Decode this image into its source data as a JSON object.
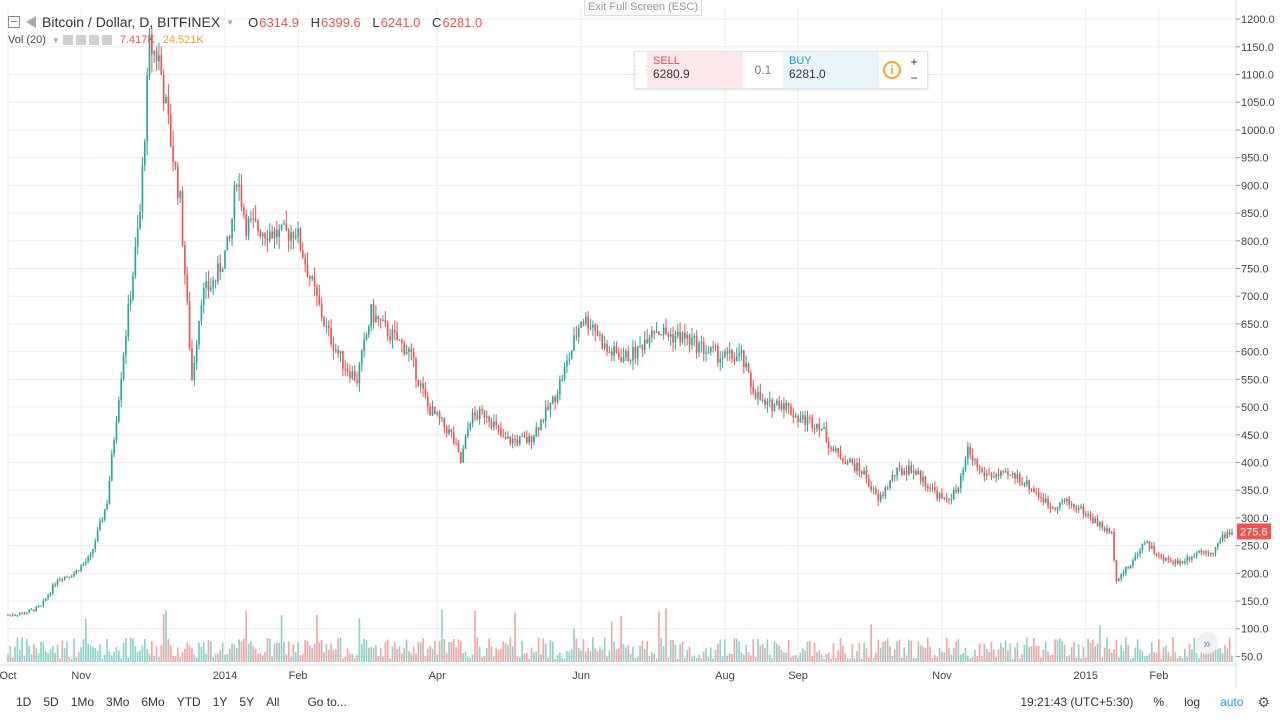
{
  "header": {
    "symbol": "Bitcoin / Dollar, D, BITFINEX",
    "open_label": "O",
    "open": "6314.9",
    "high_label": "H",
    "high": "6399.6",
    "low_label": "L",
    "low": "6241.0",
    "close_label": "C",
    "close": "6281.0"
  },
  "volume": {
    "label": "Vol (20)",
    "value": "7.417K",
    "ma": "24.521K"
  },
  "exit_fullscreen": "Exit Full Screen (ESC)",
  "trade": {
    "sell_label": "SELL",
    "sell_price": "6280.9",
    "qty": "0.1",
    "buy_label": "BUY",
    "buy_price": "6281.0",
    "plus": "+",
    "minus": "−"
  },
  "chart_data": {
    "type": "candlestick",
    "y_ticks": [
      "1200.0",
      "1150.0",
      "1100.0",
      "1050.0",
      "1000.0",
      "950.0",
      "900.0",
      "850.0",
      "800.0",
      "750.0",
      "700.0",
      "650.0",
      "600.0",
      "550.0",
      "500.0",
      "450.0",
      "400.0",
      "350.0",
      "300.0",
      "250.0",
      "200.0",
      "150.0",
      "100.0",
      "50.0"
    ],
    "ylim": [
      40,
      1220
    ],
    "x_ticks": [
      {
        "label": "Oct",
        "date": "2013-10-01"
      },
      {
        "label": "Nov",
        "date": "2013-11-01"
      },
      {
        "label": "2014",
        "date": "2014-01-01"
      },
      {
        "label": "Feb",
        "date": "2014-02-01"
      },
      {
        "label": "Apr",
        "date": "2014-04-01"
      },
      {
        "label": "Jun",
        "date": "2014-06-01"
      },
      {
        "label": "Aug",
        "date": "2014-08-01"
      },
      {
        "label": "Sep",
        "date": "2014-09-01"
      },
      {
        "label": "Nov",
        "date": "2014-11-01"
      },
      {
        "label": "2015",
        "date": "2015-01-01"
      },
      {
        "label": "Feb",
        "date": "2015-02-01"
      }
    ],
    "x_range": [
      "2013-10-01",
      "2015-03-04"
    ],
    "last_price": "275.6",
    "price_path": [
      [
        "2013-10-01",
        125
      ],
      [
        "2013-10-08",
        128
      ],
      [
        "2013-10-15",
        140
      ],
      [
        "2013-10-22",
        190
      ],
      [
        "2013-10-29",
        200
      ],
      [
        "2013-11-05",
        230
      ],
      [
        "2013-11-12",
        330
      ],
      [
        "2013-11-19",
        600
      ],
      [
        "2013-11-26",
        850
      ],
      [
        "2013-11-30",
        1150
      ],
      [
        "2013-12-04",
        1130
      ],
      [
        "2013-12-09",
        980
      ],
      [
        "2013-12-13",
        870
      ],
      [
        "2013-12-18",
        550
      ],
      [
        "2013-12-22",
        700
      ],
      [
        "2013-12-28",
        730
      ],
      [
        "2014-01-03",
        800
      ],
      [
        "2014-01-06",
        920
      ],
      [
        "2014-01-10",
        830
      ],
      [
        "2014-01-17",
        820
      ],
      [
        "2014-01-25",
        810
      ],
      [
        "2014-01-31",
        820
      ],
      [
        "2014-02-07",
        720
      ],
      [
        "2014-02-13",
        640
      ],
      [
        "2014-02-20",
        580
      ],
      [
        "2014-02-26",
        550
      ],
      [
        "2014-03-04",
        670
      ],
      [
        "2014-03-10",
        640
      ],
      [
        "2014-03-20",
        600
      ],
      [
        "2014-03-28",
        500
      ],
      [
        "2014-04-07",
        450
      ],
      [
        "2014-04-11",
        400
      ],
      [
        "2014-04-15",
        480
      ],
      [
        "2014-04-22",
        490
      ],
      [
        "2014-04-29",
        440
      ],
      [
        "2014-05-10",
        440
      ],
      [
        "2014-05-20",
        510
      ],
      [
        "2014-05-27",
        590
      ],
      [
        "2014-06-01",
        660
      ],
      [
        "2014-06-06",
        650
      ],
      [
        "2014-06-12",
        600
      ],
      [
        "2014-06-20",
        590
      ],
      [
        "2014-06-25",
        600
      ],
      [
        "2014-07-01",
        645
      ],
      [
        "2014-07-08",
        630
      ],
      [
        "2014-07-15",
        625
      ],
      [
        "2014-07-25",
        600
      ],
      [
        "2014-08-01",
        590
      ],
      [
        "2014-08-08",
        590
      ],
      [
        "2014-08-12",
        540
      ],
      [
        "2014-08-18",
        500
      ],
      [
        "2014-08-25",
        510
      ],
      [
        "2014-09-01",
        480
      ],
      [
        "2014-09-10",
        470
      ],
      [
        "2014-09-16",
        420
      ],
      [
        "2014-09-23",
        400
      ],
      [
        "2014-09-29",
        380
      ],
      [
        "2014-10-05",
        330
      ],
      [
        "2014-10-12",
        380
      ],
      [
        "2014-10-19",
        390
      ],
      [
        "2014-10-26",
        360
      ],
      [
        "2014-11-02",
        330
      ],
      [
        "2014-11-08",
        350
      ],
      [
        "2014-11-12",
        420
      ],
      [
        "2014-11-18",
        380
      ],
      [
        "2014-11-26",
        375
      ],
      [
        "2014-12-03",
        375
      ],
      [
        "2014-12-10",
        350
      ],
      [
        "2014-12-17",
        320
      ],
      [
        "2014-12-23",
        330
      ],
      [
        "2014-12-30",
        315
      ],
      [
        "2015-01-06",
        290
      ],
      [
        "2015-01-12",
        270
      ],
      [
        "2015-01-14",
        190
      ],
      [
        "2015-01-20",
        215
      ],
      [
        "2015-01-26",
        260
      ],
      [
        "2015-02-02",
        225
      ],
      [
        "2015-02-10",
        220
      ],
      [
        "2015-02-18",
        240
      ],
      [
        "2015-02-24",
        240
      ],
      [
        "2015-03-01",
        270
      ],
      [
        "2015-03-04",
        276
      ]
    ]
  },
  "bottom": {
    "timeframes": [
      "1D",
      "5D",
      "1Mo",
      "3Mo",
      "6Mo",
      "YTD",
      "1Y",
      "5Y",
      "All"
    ],
    "goto": "Go to...",
    "time": "19:21:43 (UTC+5:30)",
    "percent": "%",
    "log": "log",
    "auto": "auto"
  },
  "colors": {
    "up": "#26a69a",
    "down": "#ef5350",
    "up_vol": "#8ed1c8",
    "down_vol": "#f2a5a3",
    "grid": "#e9eef2",
    "accent": "#2196f3"
  }
}
